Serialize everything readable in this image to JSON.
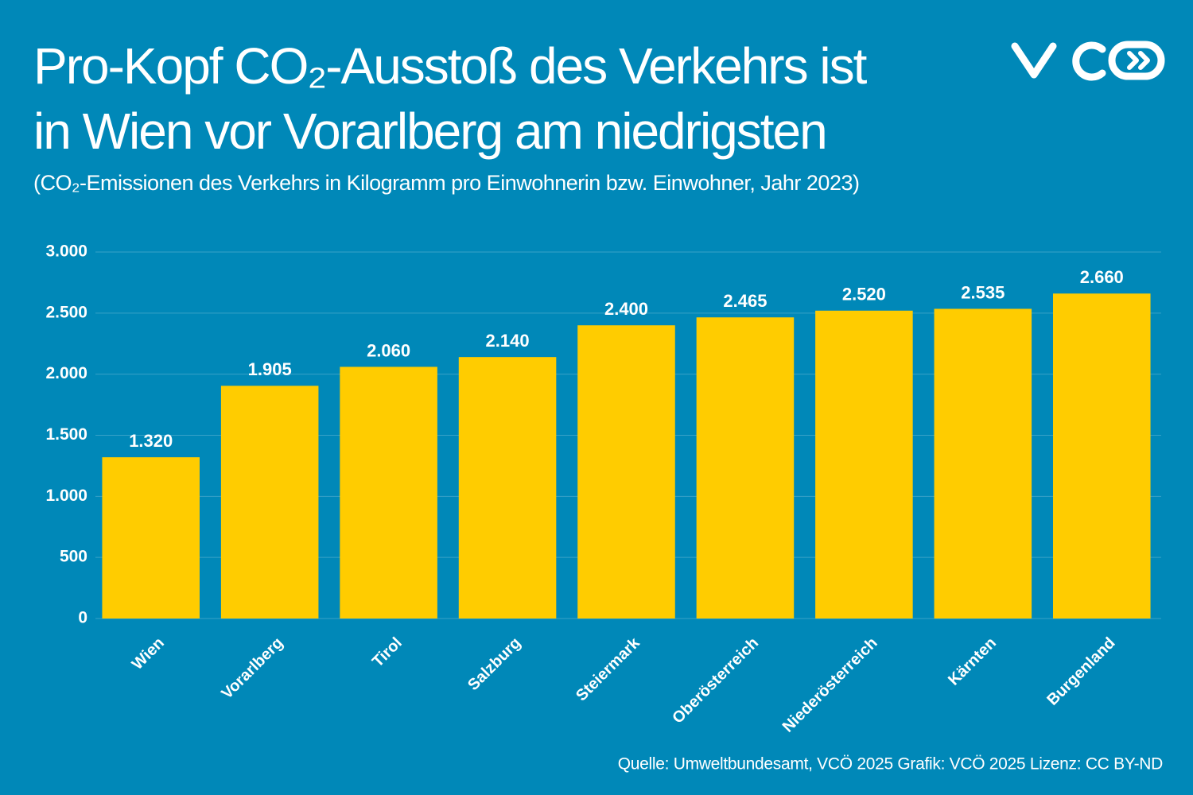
{
  "chart_data": {
    "type": "bar",
    "title": [
      "Pro-Kopf CO₂-Ausstoß des Verkehrs ist",
      "in Wien vor Vorarlberg am niedrigsten"
    ],
    "subtitle": "(CO₂-Emissionen des Verkehrs in Kilogramm pro Einwohnerin bzw. Einwohner, Jahr 2023)",
    "source": "Quelle: Umweltbundesamt, VCÖ 2025 Grafik: VCÖ 2025 Lizenz: CC BY-ND",
    "categories": [
      "Wien",
      "Vorarlberg",
      "Tirol",
      "Salzburg",
      "Steiermark",
      "Oberösterreich",
      "Niederösterreich",
      "Kärnten",
      "Burgenland"
    ],
    "values": [
      1320,
      1905,
      2060,
      2140,
      2400,
      2465,
      2520,
      2535,
      2660
    ],
    "value_labels": [
      "1.320",
      "1.905",
      "2.060",
      "2.140",
      "2.400",
      "2.465",
      "2.520",
      "2.535",
      "2.660"
    ],
    "color": "#ffcc00",
    "ylim": [
      0,
      3000
    ],
    "yticks": [
      0,
      500,
      {
        "value": 1000,
        "label": "1.000"
      },
      {
        "value": 1500,
        "label": "1.500"
      },
      {
        "value": 2000,
        "label": "2.000"
      },
      {
        "value": 2500,
        "label": "2.500"
      },
      {
        "value": 3000,
        "label": "3.000"
      }
    ],
    "grid": true
  }
}
